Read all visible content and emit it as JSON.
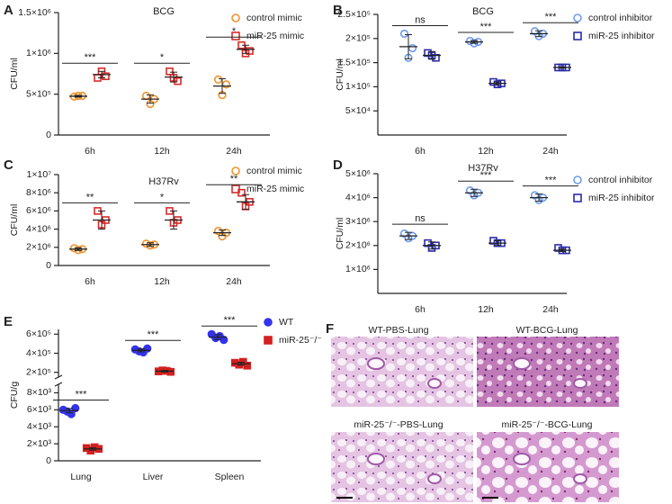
{
  "chart_data": [
    {
      "type": "dotplot",
      "panel": "A",
      "title": "BCG",
      "ylabel": "CFU/ml",
      "categories": [
        "6h",
        "12h",
        "24h"
      ],
      "ylim": [
        0,
        1500000
      ],
      "yticks": [
        0,
        {
          "value": 500000,
          "label": "5×10⁵"
        },
        {
          "value": 1000000,
          "label": "1×10⁶"
        },
        {
          "value": 1500000,
          "label": "1.5×10⁶"
        }
      ],
      "marker_fill": false,
      "significance": [
        "***",
        "*",
        "*"
      ],
      "series": [
        {
          "name": "control mimic",
          "color": "#f0922b",
          "marker": "circle",
          "values": [
            [
              470000,
              480000,
              480000
            ],
            [
              480000,
              380000,
              440000
            ],
            [
              680000,
              490000,
              620000
            ]
          ],
          "mean": [
            475000,
            440000,
            600000
          ],
          "sd": [
            10000,
            50000,
            90000
          ]
        },
        {
          "name": "miR-25 mimic",
          "color": "#d62c2c",
          "marker": "square",
          "values": [
            [
              700000,
              780000,
              720000
            ],
            [
              780000,
              700000,
              660000
            ],
            [
              1100000,
              1000000,
              1030000
            ]
          ],
          "mean": [
            740000,
            710000,
            1050000
          ],
          "sd": [
            40000,
            60000,
            50000
          ]
        }
      ]
    },
    {
      "type": "dotplot",
      "panel": "B",
      "title": "BCG",
      "ylabel": "CFU/ml",
      "categories": [
        "6h",
        "12h",
        "24h"
      ],
      "ylim": [
        0,
        250000
      ],
      "yticks": [
        {
          "value": 50000,
          "label": "5×10⁴"
        },
        {
          "value": 100000,
          "label": "1×10⁵"
        },
        {
          "value": 150000,
          "label": "1.5×10⁵"
        },
        {
          "value": 200000,
          "label": "2×10⁵"
        },
        {
          "value": 250000,
          "label": "2.5×10⁵"
        }
      ],
      "marker_fill": false,
      "significance": [
        "ns",
        "***",
        "***"
      ],
      "series": [
        {
          "name": "control inhibitor",
          "color": "#6f9cf0",
          "marker": "circle",
          "values": [
            [
              210000,
              160000,
              180000
            ],
            [
              195000,
              190000,
              193000
            ],
            [
              215000,
              205000,
              210000
            ]
          ],
          "mean": [
            183000,
            193000,
            210000
          ],
          "sd": [
            25000,
            3000,
            6000
          ]
        },
        {
          "name": "miR-25 inhibitor",
          "color": "#2b2ba8",
          "marker": "square",
          "values": [
            [
              170000,
              165000,
              160000
            ],
            [
              110000,
              105000,
              107000
            ],
            [
              140000,
              140000,
              140000
            ]
          ],
          "mean": [
            165000,
            107000,
            140000
          ],
          "sd": [
            8000,
            3000,
            1000
          ]
        }
      ]
    },
    {
      "type": "dotplot",
      "panel": "C",
      "title": "H37Rv",
      "ylabel": "CFU/ml",
      "categories": [
        "6h",
        "12h",
        "24h"
      ],
      "ylim": [
        0,
        10000000
      ],
      "yticks": [
        0,
        {
          "value": 2000000,
          "label": "2×10⁶"
        },
        {
          "value": 4000000,
          "label": "4×10⁶"
        },
        {
          "value": 6000000,
          "label": "6×10⁶"
        },
        {
          "value": 8000000,
          "label": "8×10⁶"
        },
        {
          "value": 10000000,
          "label": "1×10⁷"
        }
      ],
      "marker_fill": false,
      "significance": [
        "**",
        "*",
        "**"
      ],
      "series": [
        {
          "name": "control mimic",
          "color": "#f0922b",
          "marker": "circle",
          "values": [
            [
              1900000,
              1700000,
              1800000
            ],
            [
              2400000,
              2200000,
              2300000
            ],
            [
              3800000,
              3200000,
              3600000
            ]
          ],
          "mean": [
            1800000,
            2300000,
            3600000
          ],
          "sd": [
            150000,
            200000,
            300000
          ]
        },
        {
          "name": "miR-25 mimic",
          "color": "#d62c2c",
          "marker": "square",
          "values": [
            [
              6000000,
              4500000,
              5000000
            ],
            [
              6000000,
              4700000,
              5000000
            ],
            [
              8000000,
              6500000,
              7000000
            ]
          ],
          "mean": [
            5000000,
            5000000,
            7000000
          ],
          "sd": [
            1000000,
            1000000,
            800000
          ]
        }
      ]
    },
    {
      "type": "dotplot",
      "panel": "D",
      "title": "H37Rv",
      "ylabel": "CFU/ml",
      "categories": [
        "6h",
        "12h",
        "24h"
      ],
      "ylim": [
        0,
        5000000
      ],
      "yticks": [
        {
          "value": 1000000,
          "label": "1×10⁶"
        },
        {
          "value": 2000000,
          "label": "2×10⁶"
        },
        {
          "value": 3000000,
          "label": "3×10⁶"
        },
        {
          "value": 4000000,
          "label": "4×10⁶"
        },
        {
          "value": 5000000,
          "label": "5×10⁶"
        }
      ],
      "marker_fill": false,
      "significance": [
        "ns",
        "***",
        "***"
      ],
      "series": [
        {
          "name": "control inhibitor",
          "color": "#6f9cf0",
          "marker": "circle",
          "values": [
            [
              2500000,
              2300000,
              2400000
            ],
            [
              4300000,
              4100000,
              4200000
            ],
            [
              4100000,
              3900000,
              4000000
            ]
          ],
          "mean": [
            2400000,
            4200000,
            4000000
          ],
          "sd": [
            150000,
            150000,
            150000
          ]
        },
        {
          "name": "miR-25 inhibitor",
          "color": "#2b2ba8",
          "marker": "square",
          "values": [
            [
              2100000,
              1900000,
              2000000
            ],
            [
              2200000,
              2100000,
              2100000
            ],
            [
              1900000,
              1800000,
              1800000
            ]
          ],
          "mean": [
            2000000,
            2100000,
            1800000
          ],
          "sd": [
            150000,
            100000,
            50000
          ]
        }
      ]
    },
    {
      "type": "dotplot",
      "panel": "E",
      "ylabel": "CFU/g",
      "categories": [
        "Lung",
        "Liver",
        "Spleen"
      ],
      "ylim": [
        0,
        9000
      ],
      "yticks": [
        0,
        {
          "value": 2000,
          "label": "2×10³"
        },
        {
          "value": 4000,
          "label": "4×10³"
        },
        {
          "value": 6000,
          "label": "6×10³"
        },
        {
          "value": 8000,
          "label": "8×10³"
        }
      ],
      "ylim_upper": [
        150000,
        650000
      ],
      "yticks_upper": [
        {
          "value": 200000,
          "label": "2×10⁵"
        },
        {
          "value": 400000,
          "label": "4×10⁵"
        },
        {
          "value": 600000,
          "label": "6×10⁵"
        }
      ],
      "marker_fill": true,
      "significance": [
        "***",
        "***",
        "***"
      ],
      "series": [
        {
          "name": "WT",
          "color": "#3333ee",
          "marker": "circle",
          "values": [
            [
              6000,
              5800,
              5500,
              6200
            ],
            [
              440000,
              420000,
              410000,
              450000
            ],
            [
              600000,
              560000,
              580000,
              540000
            ]
          ],
          "mean": [
            5900,
            430000,
            570000
          ],
          "sd": [
            250,
            15000,
            25000
          ]
        },
        {
          "name": "miR-25⁻/⁻",
          "color": "#d42020",
          "marker": "square",
          "values": [
            [
              1500,
              1200,
              1600,
              1400
            ],
            [
              210000,
              220000,
              215000,
              205000
            ],
            [
              300000,
              280000,
              310000,
              270000
            ]
          ],
          "mean": [
            1400,
            212000,
            290000
          ],
          "sd": [
            150,
            8000,
            15000
          ]
        }
      ]
    }
  ],
  "histology": {
    "panel": "F",
    "images": [
      "WT-PBS-Lung",
      "WT-BCG-Lung",
      "miR-25⁻/⁻-PBS-Lung",
      "miR-25⁻/⁻-BCG-Lung"
    ]
  }
}
